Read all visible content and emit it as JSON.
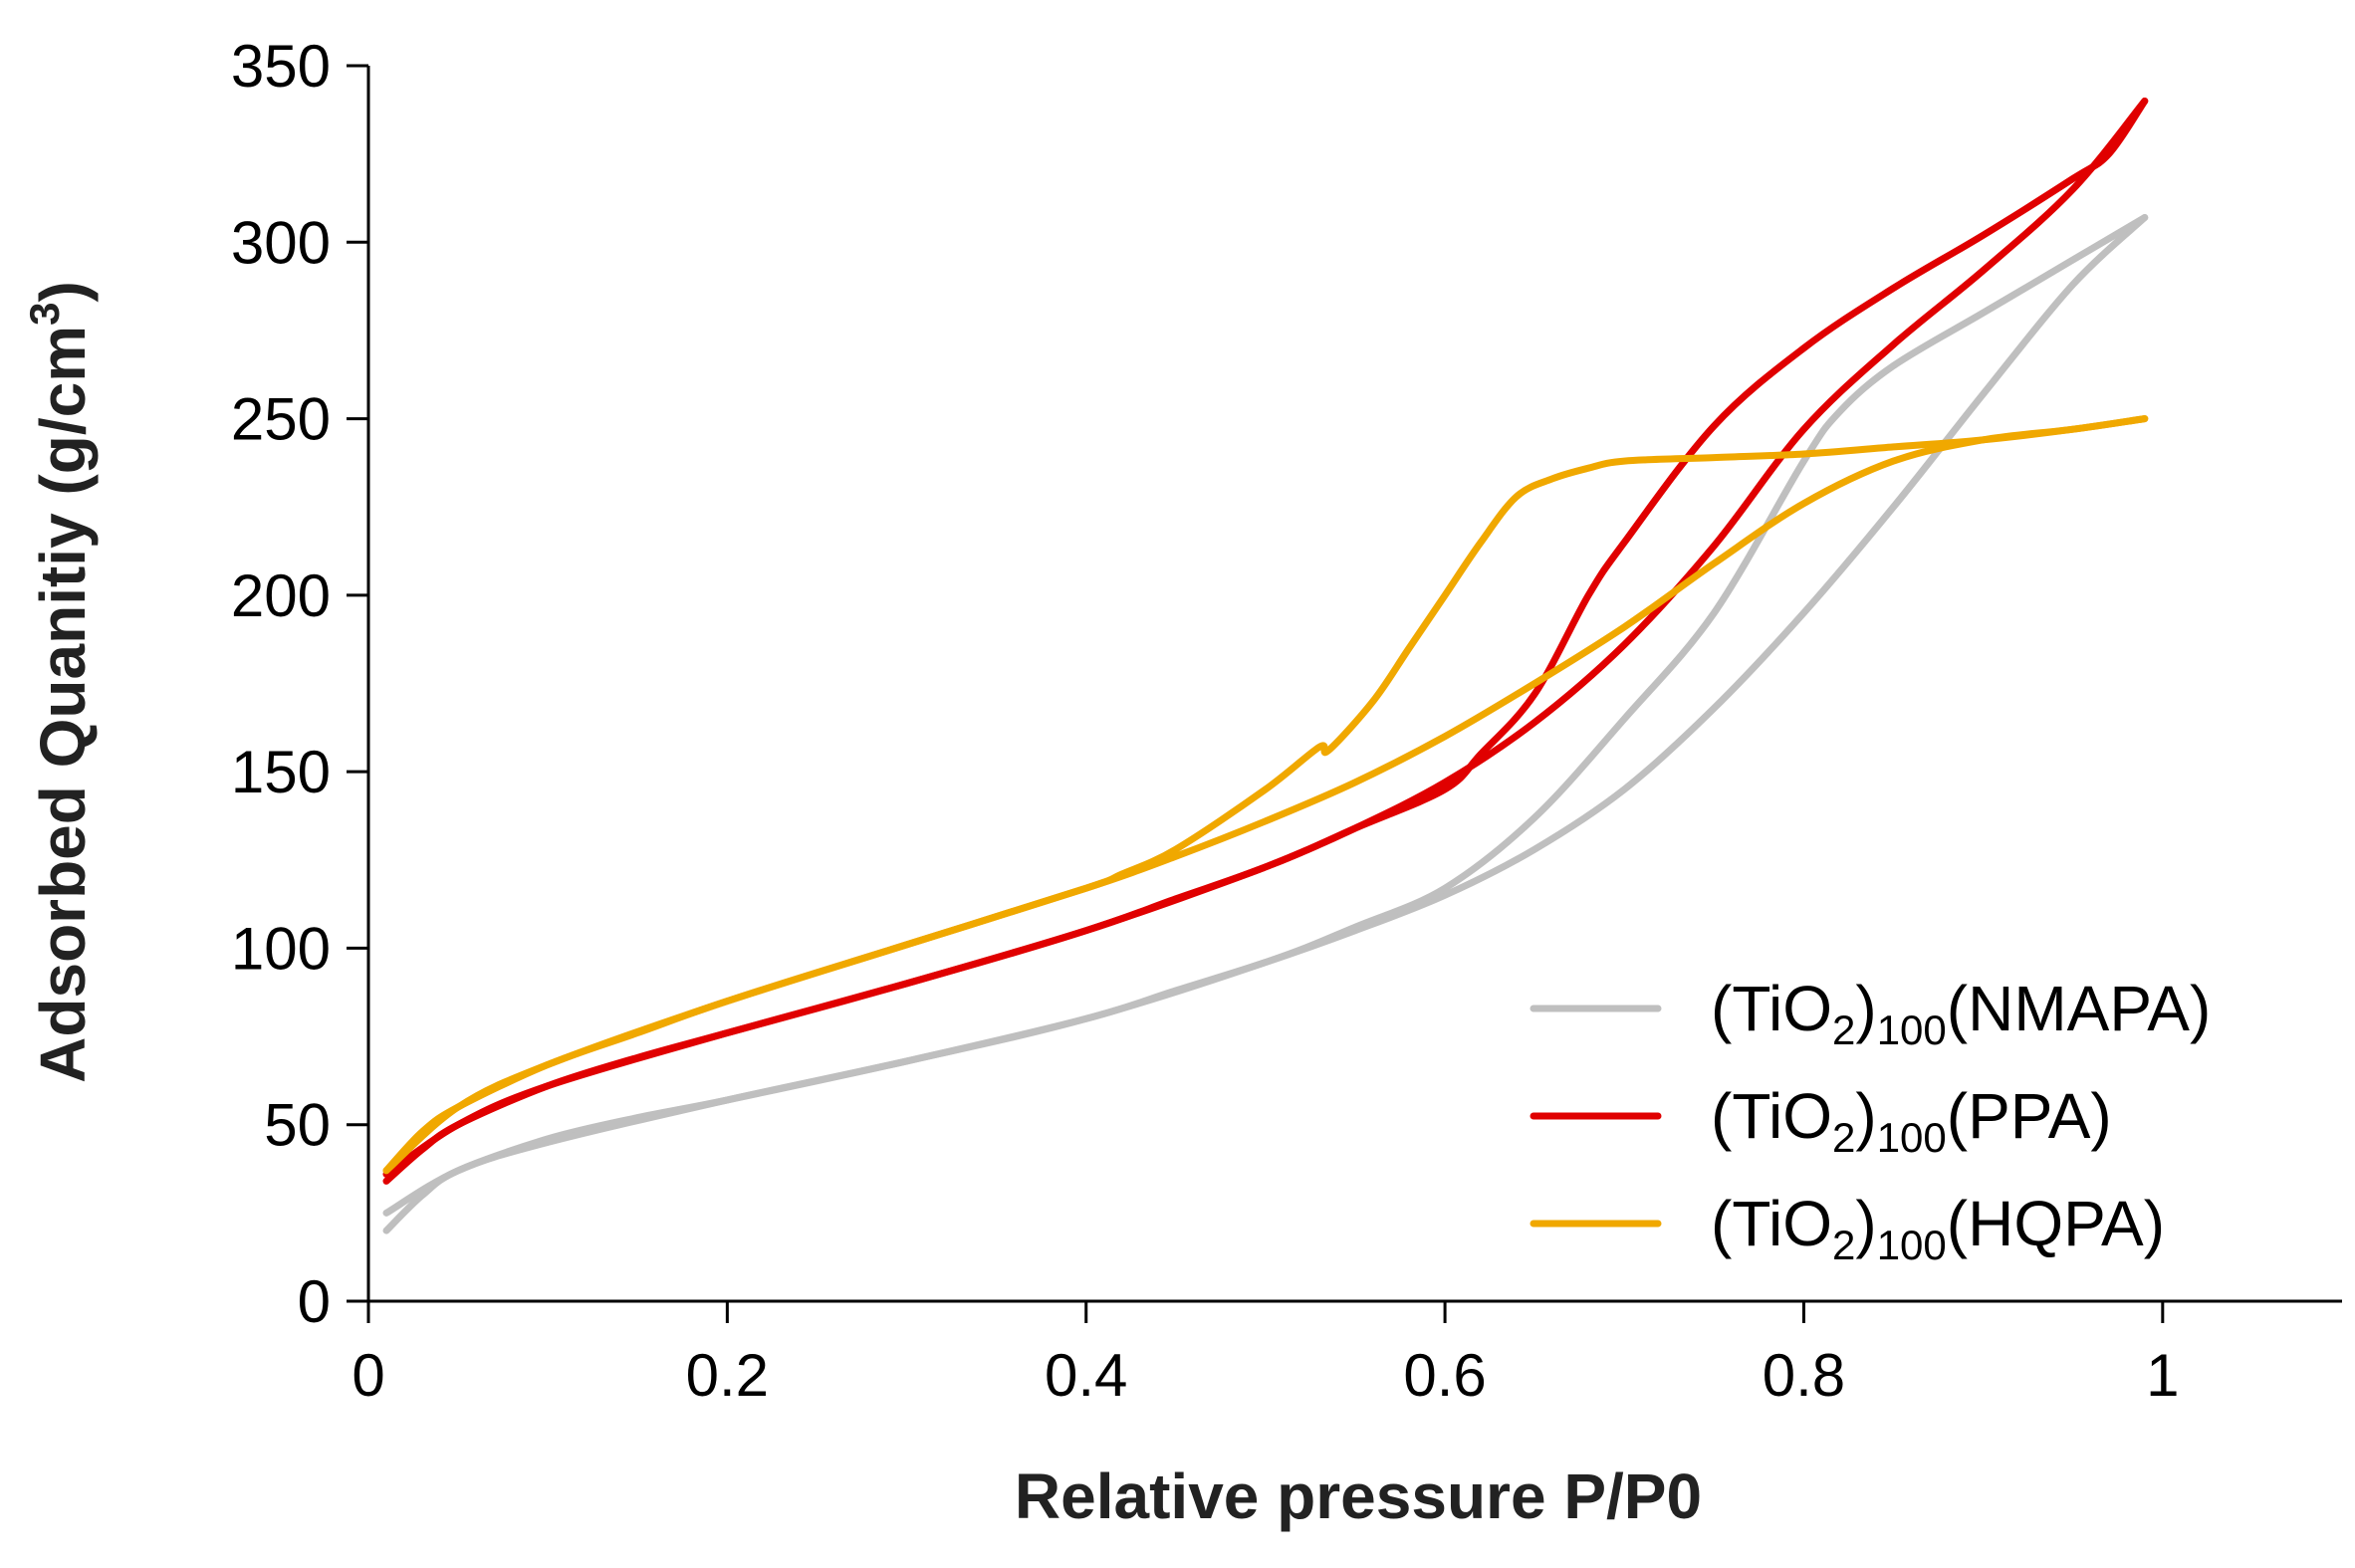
{
  "chart_data": {
    "type": "line",
    "title": "",
    "xlabel": "Relative pressure P/P0",
    "ylabel": "Adsorbed Quanitiy (g/cm3)",
    "ylabel_main": "Adsorbed Quanitiy (g/cm",
    "ylabel_sup": "3",
    "ylabel_close": ")",
    "xlim": [
      0,
      1.1
    ],
    "ylim": [
      0,
      350
    ],
    "x_ticks": [
      0,
      0.2,
      0.4,
      0.6,
      0.8,
      1
    ],
    "x_tick_labels": [
      "0",
      "0.2",
      "0.4",
      "0.6",
      "0.8",
      "1"
    ],
    "y_ticks": [
      0,
      50,
      100,
      150,
      200,
      250,
      300,
      350
    ],
    "y_tick_labels": [
      "0",
      "50",
      "100",
      "150",
      "200",
      "250",
      "300",
      "350"
    ],
    "grid": false,
    "legend_position": "bottom-right",
    "series": [
      {
        "name": "(TiO2)100(NMAPA)",
        "label_pre": "(TiO",
        "label_sub1": "2",
        "label_mid": ")",
        "label_sub2": "100",
        "label_post": "(NMAPA)",
        "color": "#bfbfbf",
        "adsorption": {
          "x": [
            0.01,
            0.03,
            0.05,
            0.1,
            0.15,
            0.2,
            0.3,
            0.4,
            0.45,
            0.5,
            0.55,
            0.6,
            0.65,
            0.7,
            0.75,
            0.8,
            0.85,
            0.9,
            0.95,
            0.99
          ],
          "y": [
            20,
            30,
            37,
            46,
            52,
            57,
            68,
            80,
            88,
            96,
            105,
            115,
            128,
            145,
            168,
            195,
            225,
            257,
            288,
            307
          ]
        },
        "desorption": {
          "x": [
            0.99,
            0.95,
            0.9,
            0.85,
            0.82,
            0.8,
            0.75,
            0.7,
            0.65,
            0.6,
            0.55,
            0.5,
            0.4,
            0.3,
            0.2,
            0.1,
            0.05,
            0.01
          ],
          "y": [
            307,
            295,
            280,
            265,
            252,
            238,
            195,
            165,
            137,
            117,
            106,
            96,
            80,
            68,
            57,
            45,
            37,
            25
          ]
        }
      },
      {
        "name": "(TiO2)100(PPA)",
        "label_pre": "(TiO",
        "label_sub1": "2",
        "label_mid": ")",
        "label_sub2": "100",
        "label_post": "(PPA)",
        "color": "#e00000",
        "adsorption": {
          "x": [
            0.01,
            0.03,
            0.05,
            0.1,
            0.15,
            0.2,
            0.3,
            0.4,
            0.45,
            0.5,
            0.55,
            0.6,
            0.65,
            0.7,
            0.75,
            0.8,
            0.85,
            0.9,
            0.95,
            0.99
          ],
          "y": [
            34,
            43,
            50,
            61,
            69,
            76,
            90,
            105,
            114,
            123,
            134,
            147,
            164,
            186,
            214,
            247,
            271,
            292,
            315,
            340
          ]
        },
        "desorption": {
          "x": [
            0.99,
            0.97,
            0.95,
            0.9,
            0.85,
            0.8,
            0.75,
            0.7,
            0.68,
            0.65,
            0.62,
            0.6,
            0.55,
            0.5,
            0.4,
            0.3,
            0.2,
            0.1,
            0.05,
            0.01
          ],
          "y": [
            340,
            325,
            318,
            302,
            287,
            270,
            248,
            215,
            200,
            172,
            155,
            145,
            134,
            123,
            105,
            90,
            76,
            61,
            50,
            36
          ]
        }
      },
      {
        "name": "(TiO2)100(HQPA)",
        "label_pre": "(TiO",
        "label_sub1": "2",
        "label_mid": ")",
        "label_sub2": "100",
        "label_post": "(HQPA)",
        "color": "#f0a800",
        "adsorption": {
          "x": [
            0.01,
            0.03,
            0.05,
            0.1,
            0.15,
            0.2,
            0.3,
            0.4,
            0.45,
            0.5,
            0.55,
            0.6,
            0.65,
            0.7,
            0.75,
            0.8,
            0.85,
            0.9,
            0.95,
            0.99
          ],
          "y": [
            37,
            48,
            55,
            67,
            76,
            85,
            101,
            117,
            126,
            136,
            147,
            160,
            175,
            191,
            209,
            226,
            238,
            244,
            247,
            250
          ]
        },
        "desorption": {
          "x": [
            0.99,
            0.95,
            0.9,
            0.85,
            0.8,
            0.75,
            0.7,
            0.68,
            0.66,
            0.64,
            0.62,
            0.6,
            0.58,
            0.56,
            0.535,
            0.53,
            0.5,
            0.45,
            0.42,
            0.4,
            0.3,
            0.2,
            0.1,
            0.05,
            0.01
          ],
          "y": [
            250,
            247,
            244,
            242,
            240,
            239,
            238,
            236,
            233,
            228,
            215,
            200,
            185,
            170,
            156,
            157,
            145,
            128,
            121,
            117,
            101,
            85,
            67,
            55,
            37
          ]
        }
      }
    ]
  }
}
